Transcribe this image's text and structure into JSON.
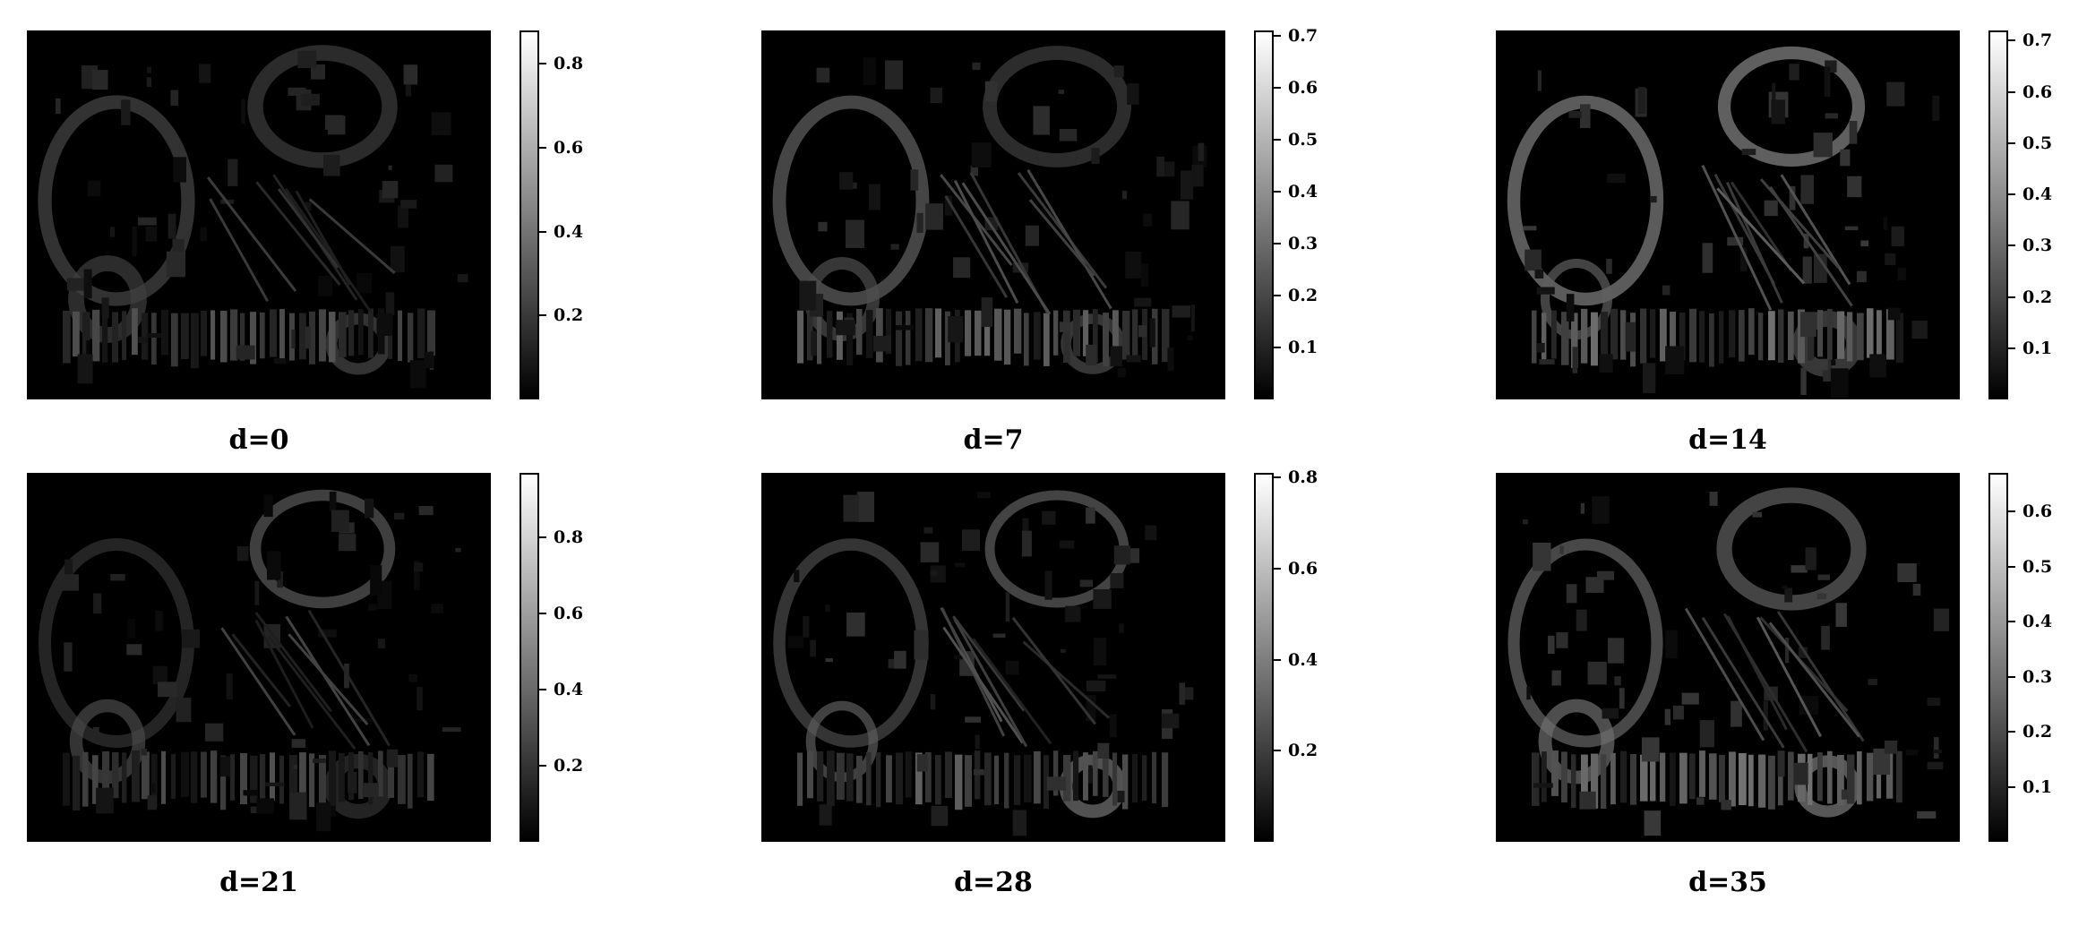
{
  "chart_data": [
    {
      "type": "heatmap",
      "title": "d=0",
      "colormap": "gray",
      "vmax": 0.88,
      "colorbar_ticks": [
        0.2,
        0.4,
        0.6,
        0.8
      ]
    },
    {
      "type": "heatmap",
      "title": "d=7",
      "colormap": "gray",
      "vmax": 0.71,
      "colorbar_ticks": [
        0.1,
        0.2,
        0.3,
        0.4,
        0.5,
        0.6,
        0.7
      ]
    },
    {
      "type": "heatmap",
      "title": "d=14",
      "colormap": "gray",
      "vmax": 0.72,
      "colorbar_ticks": [
        0.1,
        0.2,
        0.3,
        0.4,
        0.5,
        0.6,
        0.7
      ]
    },
    {
      "type": "heatmap",
      "title": "d=21",
      "colormap": "gray",
      "vmax": 0.97,
      "colorbar_ticks": [
        0.2,
        0.4,
        0.6,
        0.8
      ]
    },
    {
      "type": "heatmap",
      "title": "d=28",
      "colormap": "gray",
      "vmax": 0.81,
      "colorbar_ticks": [
        0.2,
        0.4,
        0.6,
        0.8
      ]
    },
    {
      "type": "heatmap",
      "title": "d=35",
      "colormap": "gray",
      "vmax": 0.67,
      "colorbar_ticks": [
        0.1,
        0.2,
        0.3,
        0.4,
        0.5,
        0.6
      ]
    }
  ]
}
